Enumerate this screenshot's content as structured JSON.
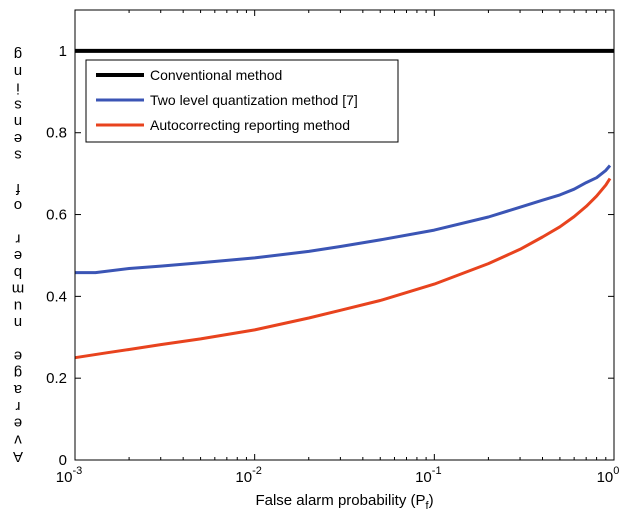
{
  "chart_data": {
    "type": "line",
    "title": "",
    "xlabel": "False alarm probability (P",
    "xlabel_subscript": "f",
    "xlabel_close": ")",
    "ylabel": "Average number of sensing",
    "x_scale": "log",
    "xlim": [
      0.001,
      1
    ],
    "ylim": [
      0,
      1.1
    ],
    "x_ticks": [
      {
        "value": 0.001,
        "base": "10",
        "exp": "-3"
      },
      {
        "value": 0.01,
        "base": "10",
        "exp": "-2"
      },
      {
        "value": 0.1,
        "base": "10",
        "exp": "-1"
      },
      {
        "value": 1,
        "base": "10",
        "exp": "0"
      }
    ],
    "y_ticks": [
      {
        "value": 0,
        "label": "0"
      },
      {
        "value": 0.2,
        "label": "0.2"
      },
      {
        "value": 0.4,
        "label": "0.4"
      },
      {
        "value": 0.6,
        "label": "0.6"
      },
      {
        "value": 0.8,
        "label": "0.8"
      },
      {
        "value": 1,
        "label": "1"
      }
    ],
    "grid": false,
    "legend_position": "top-left",
    "series": [
      {
        "name": "Conventional method",
        "color": "#000000",
        "points": [
          [
            0.001,
            1.0
          ],
          [
            1.0,
            1.0
          ]
        ]
      },
      {
        "name": "Two level quantization method [7]",
        "color": "#3b55b5",
        "points": [
          [
            0.001,
            0.458
          ],
          [
            0.0013,
            0.458
          ],
          [
            0.002,
            0.468
          ],
          [
            0.003,
            0.474
          ],
          [
            0.005,
            0.482
          ],
          [
            0.01,
            0.494
          ],
          [
            0.02,
            0.51
          ],
          [
            0.03,
            0.522
          ],
          [
            0.05,
            0.538
          ],
          [
            0.1,
            0.562
          ],
          [
            0.2,
            0.594
          ],
          [
            0.3,
            0.618
          ],
          [
            0.4,
            0.635
          ],
          [
            0.5,
            0.648
          ],
          [
            0.6,
            0.662
          ],
          [
            0.7,
            0.678
          ],
          [
            0.8,
            0.69
          ],
          [
            0.9,
            0.708
          ],
          [
            0.95,
            0.72
          ]
        ]
      },
      {
        "name": "Autocorrecting reporting method",
        "color": "#e8431e",
        "points": [
          [
            0.001,
            0.25
          ],
          [
            0.0015,
            0.262
          ],
          [
            0.002,
            0.27
          ],
          [
            0.003,
            0.282
          ],
          [
            0.005,
            0.296
          ],
          [
            0.01,
            0.318
          ],
          [
            0.02,
            0.347
          ],
          [
            0.03,
            0.366
          ],
          [
            0.05,
            0.39
          ],
          [
            0.1,
            0.43
          ],
          [
            0.2,
            0.48
          ],
          [
            0.3,
            0.515
          ],
          [
            0.4,
            0.545
          ],
          [
            0.5,
            0.57
          ],
          [
            0.6,
            0.595
          ],
          [
            0.7,
            0.62
          ],
          [
            0.8,
            0.645
          ],
          [
            0.9,
            0.672
          ],
          [
            0.95,
            0.688
          ]
        ]
      }
    ]
  }
}
